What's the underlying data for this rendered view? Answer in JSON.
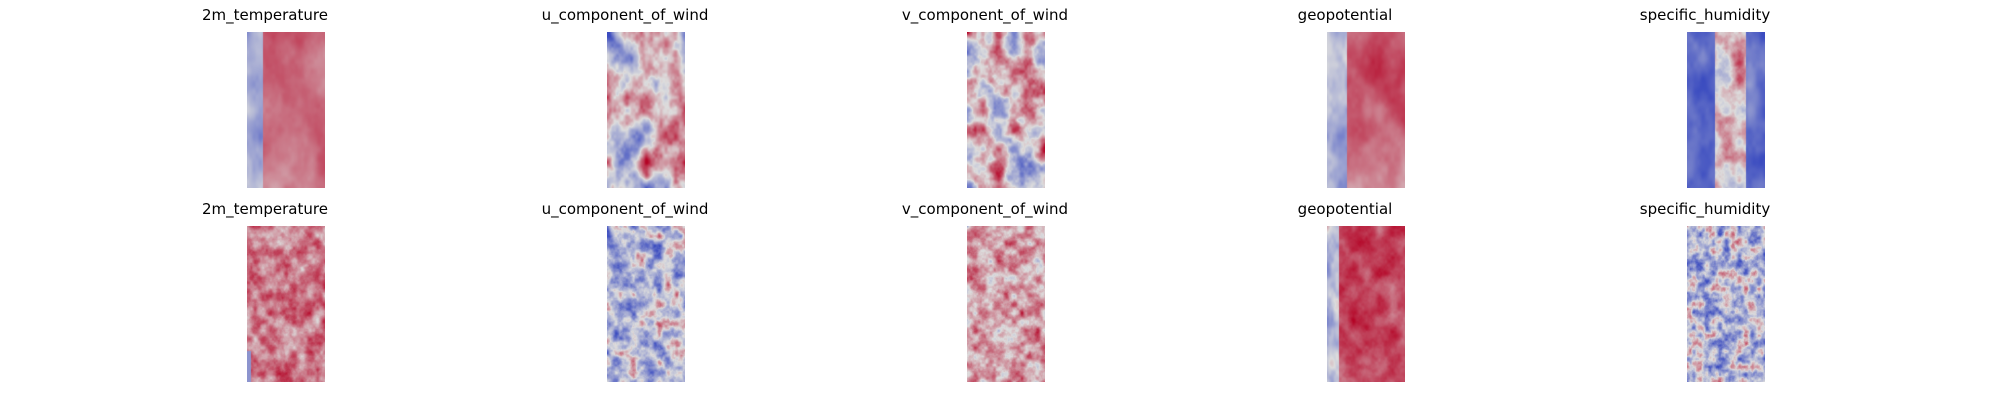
{
  "colormap": {
    "name": "coolwarm",
    "low": "#3b4cc0",
    "mid": "#dddddd",
    "high": "#b40426"
  },
  "chart_data": [
    {
      "type": "heatmap",
      "row": 0,
      "col": 0,
      "title": "2m_temperature",
      "pattern": "temp_smooth"
    },
    {
      "type": "heatmap",
      "row": 0,
      "col": 1,
      "title": "u_component_of_wind",
      "pattern": "u_smooth"
    },
    {
      "type": "heatmap",
      "row": 0,
      "col": 2,
      "title": "v_component_of_wind",
      "pattern": "v_smooth"
    },
    {
      "type": "heatmap",
      "row": 0,
      "col": 3,
      "title": "geopotential",
      "pattern": "geo_smooth"
    },
    {
      "type": "heatmap",
      "row": 0,
      "col": 4,
      "title": "specific_humidity",
      "pattern": "hum_smooth"
    },
    {
      "type": "heatmap",
      "row": 1,
      "col": 0,
      "title": "2m_temperature",
      "pattern": "temp_noisy"
    },
    {
      "type": "heatmap",
      "row": 1,
      "col": 1,
      "title": "u_component_of_wind",
      "pattern": "u_noisy"
    },
    {
      "type": "heatmap",
      "row": 1,
      "col": 2,
      "title": "v_component_of_wind",
      "pattern": "v_noisy"
    },
    {
      "type": "heatmap",
      "row": 1,
      "col": 3,
      "title": "geopotential",
      "pattern": "geo_noisy"
    },
    {
      "type": "heatmap",
      "row": 1,
      "col": 4,
      "title": "specific_humidity",
      "pattern": "hum_noisy"
    }
  ]
}
